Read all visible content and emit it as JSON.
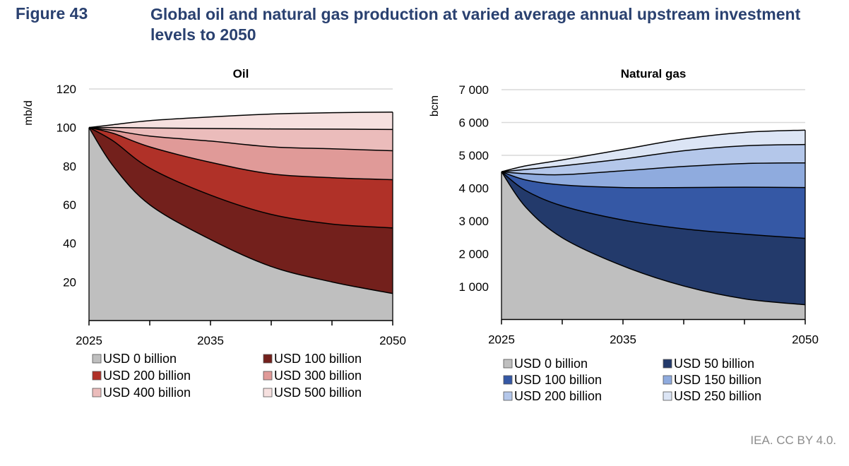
{
  "figure": {
    "number": "Figure 43",
    "title": "Global oil and natural gas production at varied average annual upstream investment levels to 2050",
    "source": "IEA. CC BY 4.0."
  },
  "chart_data": [
    {
      "type": "area",
      "title": "Oil",
      "ylabel": "mb/d",
      "xlabel": "",
      "ylim": [
        0,
        120
      ],
      "yticks": [
        20,
        40,
        60,
        80,
        100,
        120
      ],
      "ytick_labels": [
        "20",
        "40",
        "60",
        "80",
        "100",
        "120"
      ],
      "xlim": [
        2025,
        2050
      ],
      "xticks": [
        2025,
        2030,
        2035,
        2040,
        2045,
        2050
      ],
      "xtick_labels": [
        "2025",
        "2035",
        "2050"
      ],
      "xtick_label_years": [
        2025,
        2035,
        2050
      ],
      "grid": true,
      "legend_position": "bottom",
      "x": [
        2025,
        2027,
        2030,
        2035,
        2040,
        2045,
        2050
      ],
      "note": "values are cumulative production levels (top edge of each band)",
      "series": [
        {
          "name": "USD 0 billion",
          "color": "#bfbfbf",
          "values": [
            100,
            80,
            60,
            42,
            28,
            20,
            14
          ]
        },
        {
          "name": "USD 100 billion",
          "color": "#73201c",
          "values": [
            100,
            93,
            79,
            65,
            55,
            50,
            48
          ]
        },
        {
          "name": "USD 200 billion",
          "color": "#b03128",
          "values": [
            100,
            97,
            90,
            82,
            76,
            74,
            73
          ]
        },
        {
          "name": "USD 300 billion",
          "color": "#e09a98",
          "values": [
            100,
            98.5,
            95.6,
            93,
            90,
            89,
            88
          ]
        },
        {
          "name": "USD 400 billion",
          "color": "#ebbcbb",
          "values": [
            100,
            100,
            99.8,
            99.5,
            99.3,
            99.2,
            99
          ]
        },
        {
          "name": "USD 500 billion",
          "color": "#f6e0df",
          "values": [
            100,
            101.5,
            103.6,
            105.5,
            107,
            107.7,
            108
          ]
        }
      ]
    },
    {
      "type": "area",
      "title": "Natural gas",
      "ylabel": "bcm",
      "xlabel": "",
      "ylim": [
        0,
        7000
      ],
      "yticks": [
        1000,
        2000,
        3000,
        4000,
        5000,
        6000,
        7000
      ],
      "ytick_labels": [
        "1 000",
        "2 000",
        "3 000",
        "4 000",
        "5 000",
        "6 000",
        "7 000"
      ],
      "xlim": [
        2025,
        2050
      ],
      "xticks": [
        2025,
        2030,
        2035,
        2040,
        2045,
        2050
      ],
      "xtick_labels": [
        "2025",
        "2035",
        "2050"
      ],
      "xtick_label_years": [
        2025,
        2035,
        2050
      ],
      "grid": true,
      "legend_position": "bottom",
      "x": [
        2025,
        2027,
        2030,
        2035,
        2040,
        2045,
        2050
      ],
      "note": "values are cumulative production levels (top edge of each band)",
      "series": [
        {
          "name": "USD 0 billion",
          "color": "#bfbfbf",
          "values": [
            4500,
            3420,
            2490,
            1630,
            1020,
            630,
            450
          ]
        },
        {
          "name": "USD 50 billion",
          "color": "#233a6b",
          "values": [
            4500,
            3925,
            3460,
            3030,
            2760,
            2600,
            2470
          ]
        },
        {
          "name": "USD 100 billion",
          "color": "#3558a5",
          "values": [
            4500,
            4250,
            4100,
            4020,
            4020,
            4030,
            4020
          ]
        },
        {
          "name": "USD 150 billion",
          "color": "#8fabde",
          "values": [
            4500,
            4440,
            4410,
            4530,
            4660,
            4750,
            4770
          ]
        },
        {
          "name": "USD 200 billion",
          "color": "#b4c7ea",
          "values": [
            4500,
            4570,
            4680,
            4890,
            5140,
            5290,
            5330
          ]
        },
        {
          "name": "USD 250 billion",
          "color": "#dce5f5",
          "values": [
            4500,
            4680,
            4860,
            5180,
            5500,
            5700,
            5770
          ]
        }
      ]
    }
  ]
}
